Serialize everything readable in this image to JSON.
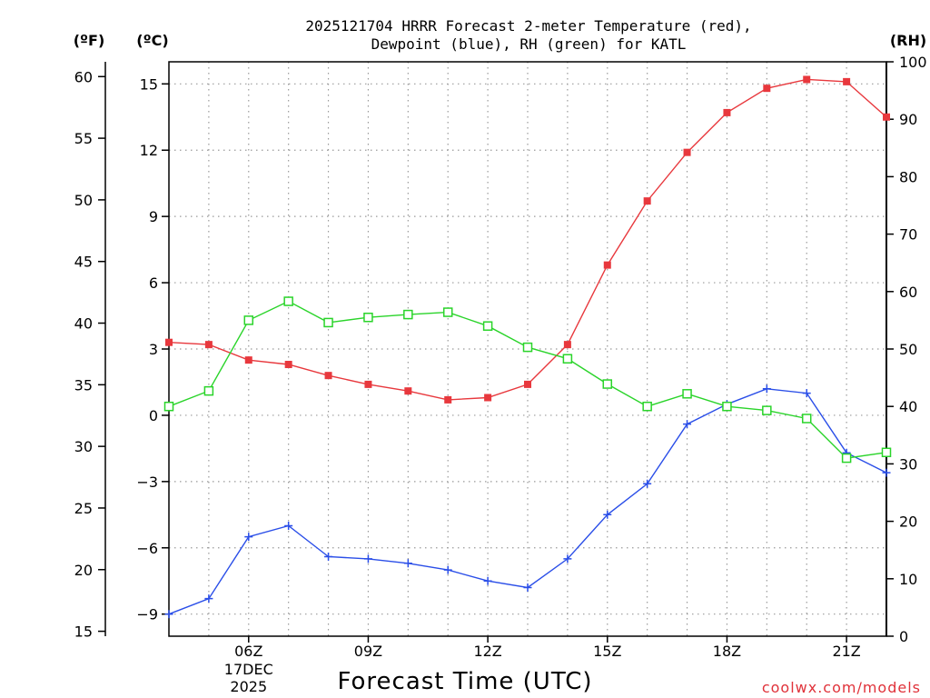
{
  "chart_data": {
    "type": "line",
    "title_line1": "2025121704 HRRR Forecast 2-meter Temperature (red),",
    "title_line2": "Dewpoint (blue), RH (green) for KATL",
    "xlabel": "Forecast Time (UTC)",
    "x_hours": [
      4,
      5,
      6,
      7,
      8,
      9,
      10,
      11,
      12,
      13,
      14,
      15,
      16,
      17,
      18,
      19,
      20,
      21,
      22
    ],
    "x_range": [
      4,
      22
    ],
    "x_ticks": [
      {
        "hour": 6,
        "label": "06Z",
        "date_line1": "17DEC",
        "date_line2": "2025"
      },
      {
        "hour": 9,
        "label": "09Z"
      },
      {
        "hour": 12,
        "label": "12Z"
      },
      {
        "hour": 15,
        "label": "15Z"
      },
      {
        "hour": 18,
        "label": "18Z"
      },
      {
        "hour": 21,
        "label": "21Z"
      }
    ],
    "axes": {
      "fahrenheit": {
        "unit_label": "(ºF)",
        "range": [
          14.6,
          61.2
        ],
        "ticks": [
          15,
          20,
          25,
          30,
          35,
          40,
          45,
          50,
          55,
          60
        ]
      },
      "celsius": {
        "unit_label": "(ºC)",
        "range": [
          -10.0,
          16.0
        ],
        "ticks": [
          -9,
          -6,
          -3,
          0,
          3,
          6,
          9,
          12,
          15
        ]
      },
      "rh": {
        "unit_label": "(RH)",
        "range": [
          0,
          100
        ],
        "ticks": [
          0,
          10,
          20,
          30,
          40,
          50,
          60,
          70,
          80,
          90,
          100
        ]
      }
    },
    "series": [
      {
        "name": "Temperature",
        "unit": "C",
        "color": "#e8383d",
        "marker": "filled-square",
        "values": [
          3.3,
          3.2,
          2.5,
          2.3,
          1.8,
          1.4,
          1.1,
          0.7,
          0.8,
          1.4,
          3.2,
          6.8,
          9.7,
          11.9,
          13.7,
          14.8,
          15.2,
          15.1,
          13.5
        ]
      },
      {
        "name": "Dewpoint",
        "unit": "C",
        "color": "#2a4ee8",
        "marker": "plus",
        "values": [
          -9.0,
          -8.3,
          -5.5,
          -5.0,
          -6.4,
          -6.5,
          -6.7,
          -7.0,
          -7.5,
          -7.8,
          -6.5,
          -4.5,
          -3.1,
          -0.4,
          0.5,
          1.2,
          1.0,
          -1.7,
          -2.6
        ]
      },
      {
        "name": "RH",
        "unit": "%",
        "color": "#2ad42a",
        "marker": "open-square",
        "values": [
          40,
          42.7,
          55,
          58.3,
          54.6,
          55.5,
          56,
          56.4,
          54,
          50.3,
          48.3,
          43.9,
          40,
          42.2,
          40,
          39.3,
          37.9,
          31,
          32
        ]
      }
    ],
    "grid": true
  },
  "credit": "coolwx.com/models"
}
